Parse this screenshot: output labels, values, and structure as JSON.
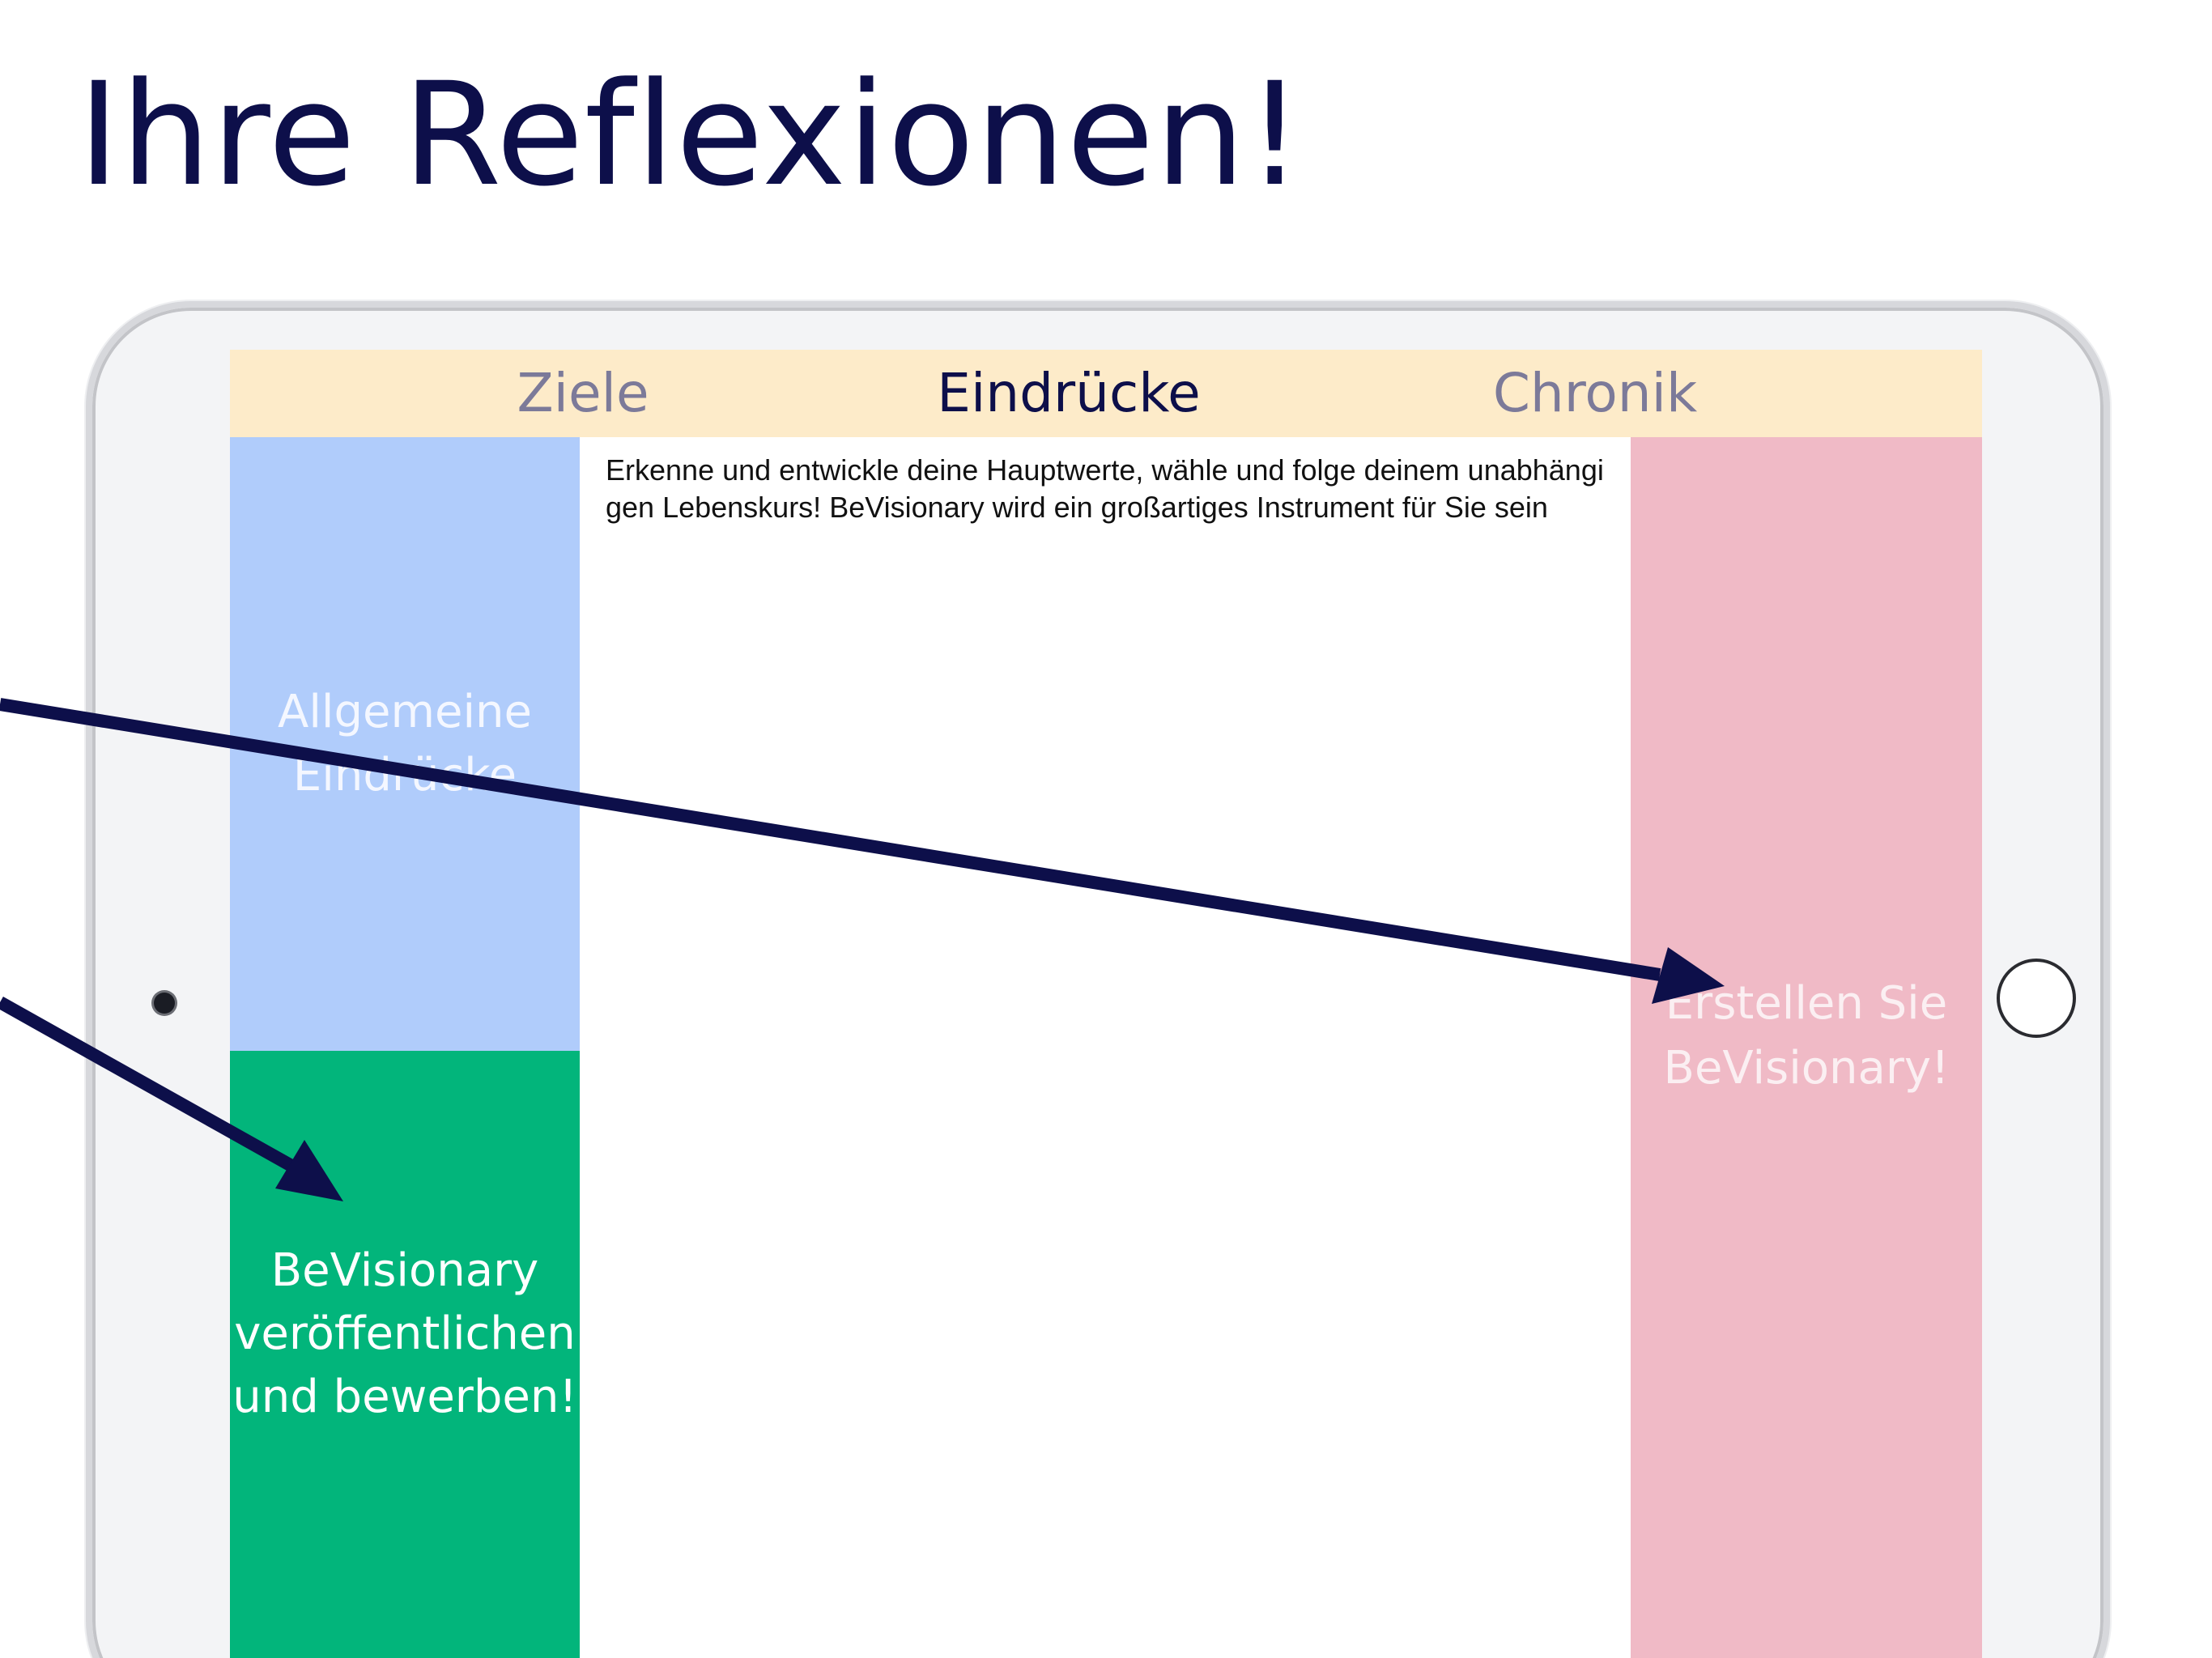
{
  "headline": "Ihre Reflexionen!",
  "tabs": [
    {
      "label": "Ziele"
    },
    {
      "label": "Eindrücke",
      "active": true
    },
    {
      "label": "Chronik"
    }
  ],
  "tiles": {
    "general_impressions": {
      "line1": "Allgemeine",
      "line2": "Eindrücke"
    },
    "publish": {
      "line1": "BeVisionary",
      "line2": "veröffentlichen",
      "line3": "und bewerben!"
    },
    "create": {
      "line1": "Erstellen Sie",
      "line2": "BeVisionary!"
    }
  },
  "description": "Erkenne und entwickle deine Hauptwerte, wähle und folge deinem unabhängigen Lebenskurs! BeVisionary wird ein großartiges Instrument für Sie sein",
  "colors": {
    "headline": "#0d0f4a",
    "tabbar": "#fdebc9",
    "tile_blue": "#b0ccfb",
    "tile_green": "#02b57b",
    "tile_pink": "#f0bac6",
    "arrow": "#0d0f4a"
  }
}
